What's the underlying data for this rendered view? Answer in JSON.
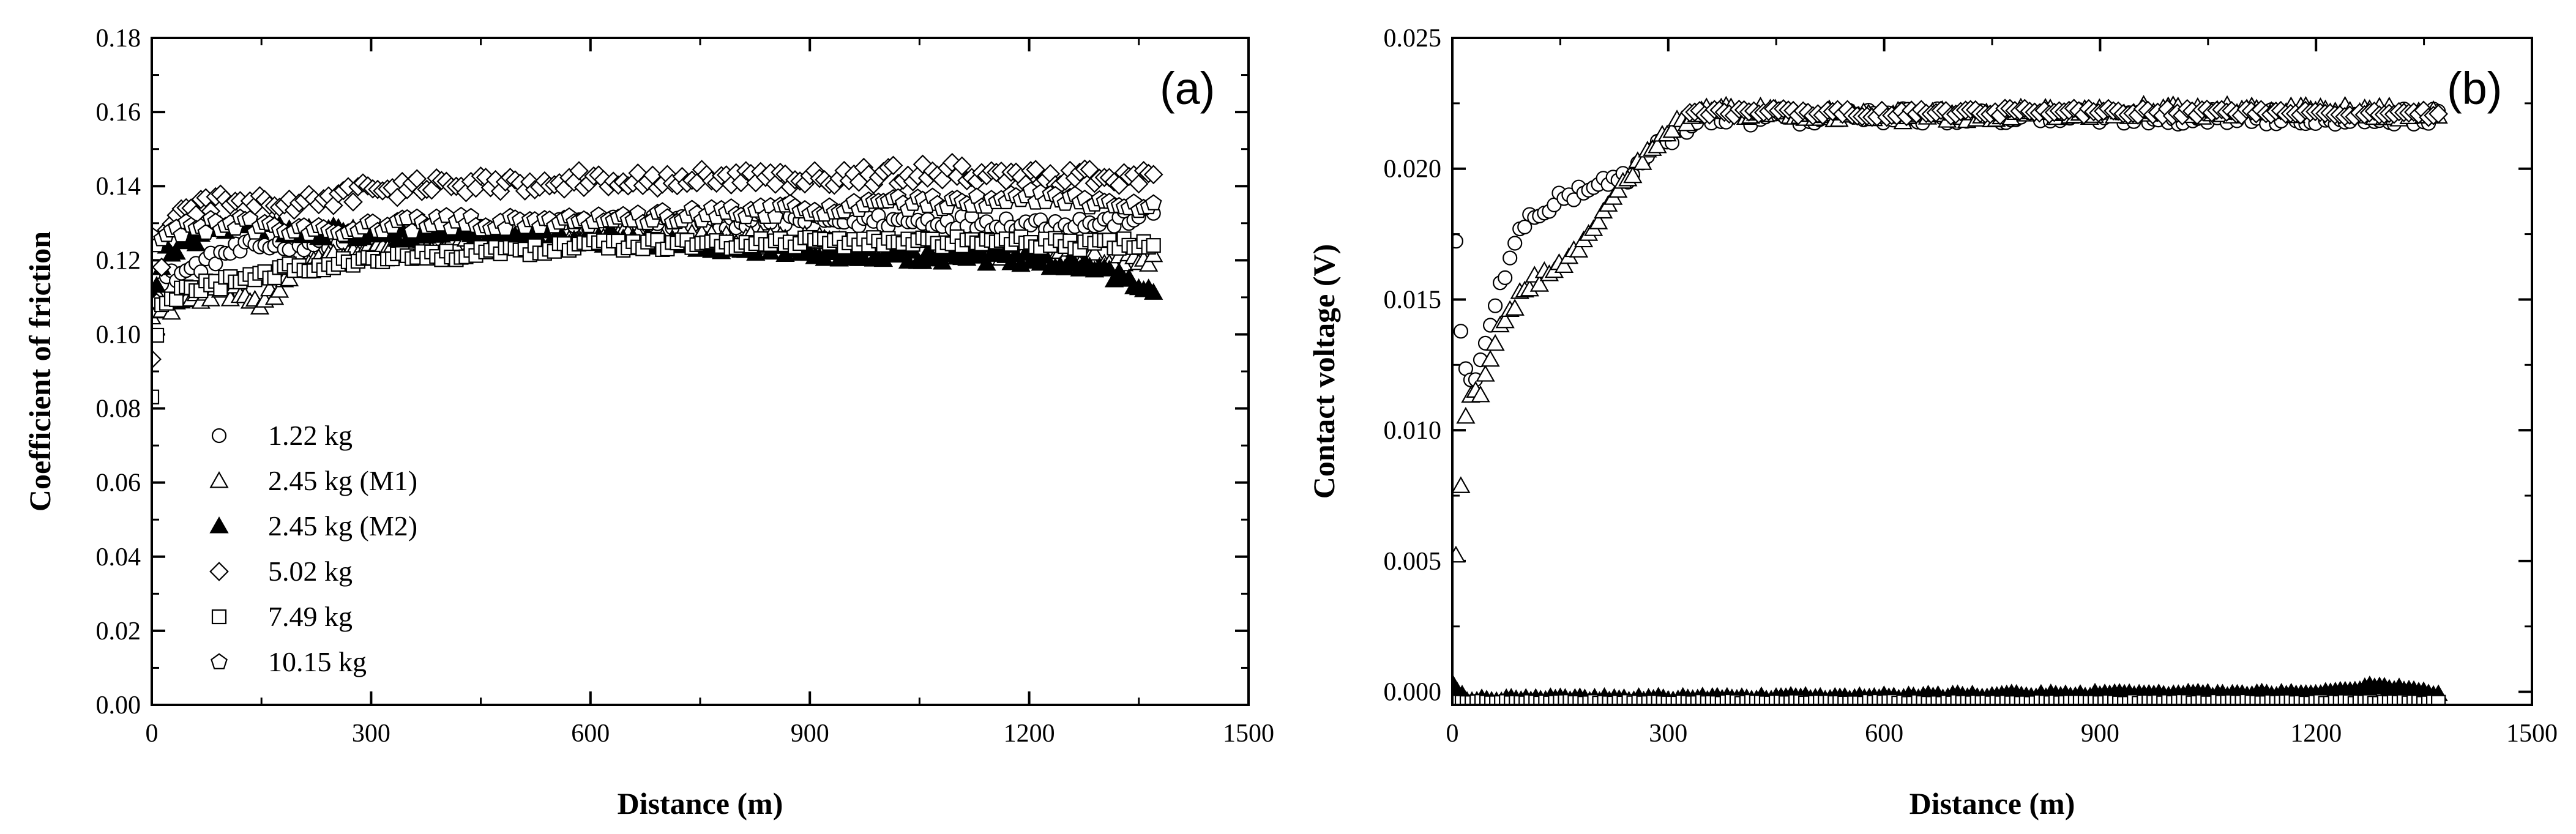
{
  "chart_data": [
    {
      "panel": "(a)",
      "type": "scatter",
      "xlabel": "Distance (m)",
      "ylabel": "Coefficient of friction",
      "xlim": [
        0,
        1500
      ],
      "ylim": [
        0,
        0.18
      ],
      "xticks": [
        "0",
        "300",
        "600",
        "900",
        "1200",
        "1500"
      ],
      "yticks": [
        "0.00",
        "0.02",
        "0.04",
        "0.06",
        "0.08",
        "0.10",
        "0.12",
        "0.14",
        "0.16",
        "0.18"
      ],
      "legend": {
        "placement": "lower-left",
        "entries": [
          {
            "label": "1.22 kg",
            "marker": "circle"
          },
          {
            "label": "2.45 kg (M1)",
            "marker": "triangle"
          },
          {
            "label": "2.45 kg (M2)",
            "marker": "triangle-filled"
          },
          {
            "label": "5.02 kg",
            "marker": "diamond"
          },
          {
            "label": "7.49 kg",
            "marker": "square"
          },
          {
            "label": "10.15 kg",
            "marker": "pentagon"
          }
        ]
      },
      "series": [
        {
          "name": "1.22 kg",
          "marker": "circle",
          "x_range": [
            0,
            1370
          ],
          "anchors_x": [
            0,
            20,
            60,
            100,
            150,
            300,
            600,
            900,
            1200,
            1300,
            1370
          ],
          "anchors_y": [
            0.11,
            0.115,
            0.118,
            0.122,
            0.124,
            0.126,
            0.13,
            0.131,
            0.13,
            0.13,
            0.133
          ],
          "noise": 0.002
        },
        {
          "name": "2.45 kg (M1)",
          "marker": "triangle",
          "x_range": [
            0,
            1370
          ],
          "anchors_x": [
            0,
            30,
            80,
            120,
            150,
            200,
            300,
            600,
            900,
            1200,
            1300,
            1370
          ],
          "anchors_y": [
            0.105,
            0.108,
            0.11,
            0.112,
            0.108,
            0.118,
            0.123,
            0.126,
            0.125,
            0.122,
            0.12,
            0.12
          ],
          "noise": 0.002
        },
        {
          "name": "2.45 kg (M2)",
          "marker": "triangle-filled",
          "x_range": [
            0,
            1370
          ],
          "anchors_x": [
            0,
            20,
            60,
            120,
            200,
            300,
            600,
            900,
            1200,
            1300,
            1370
          ],
          "anchors_y": [
            0.11,
            0.122,
            0.126,
            0.13,
            0.128,
            0.127,
            0.126,
            0.122,
            0.12,
            0.117,
            0.112
          ],
          "noise": 0.0018
        },
        {
          "name": "5.02 kg",
          "marker": "diamond",
          "x_range": [
            0,
            1370
          ],
          "anchors_x": [
            0,
            20,
            60,
            100,
            200,
            300,
            600,
            900,
            1100,
            1200,
            1300,
            1370
          ],
          "anchors_y": [
            0.095,
            0.13,
            0.134,
            0.136,
            0.135,
            0.139,
            0.142,
            0.142,
            0.144,
            0.142,
            0.143,
            0.142
          ],
          "noise": 0.0025
        },
        {
          "name": "7.49 kg",
          "marker": "square",
          "x_range": [
            0,
            1370
          ],
          "anchors_x": [
            0,
            10,
            50,
            100,
            200,
            300,
            600,
            900,
            1200,
            1300,
            1370
          ],
          "anchors_y": [
            0.083,
            0.108,
            0.112,
            0.114,
            0.118,
            0.12,
            0.124,
            0.125,
            0.125,
            0.124,
            0.125
          ],
          "noise": 0.0015
        },
        {
          "name": "10.15 kg",
          "marker": "pentagon",
          "x_range": [
            0,
            1370
          ],
          "anchors_x": [
            0,
            30,
            100,
            200,
            400,
            600,
            800,
            1000,
            1200,
            1300,
            1370
          ],
          "anchors_y": [
            0.125,
            0.128,
            0.13,
            0.128,
            0.13,
            0.131,
            0.133,
            0.135,
            0.137,
            0.136,
            0.135
          ],
          "noise": 0.002
        }
      ]
    },
    {
      "panel": "(b)",
      "type": "scatter",
      "xlabel": "Distance (m)",
      "ylabel": "Contact voltage (V)",
      "xlim": [
        0,
        1500
      ],
      "ylim": [
        -0.0005,
        0.025
      ],
      "xticks": [
        "0",
        "300",
        "600",
        "900",
        "1200",
        "1500"
      ],
      "yticks": [
        "0.000",
        "0.005",
        "0.010",
        "0.015",
        "0.020",
        "0.025"
      ],
      "series": [
        {
          "name": "1.22 kg",
          "marker": "circle",
          "x_range": [
            5,
            1370
          ],
          "anchors_x": [
            5,
            15,
            30,
            60,
            100,
            150,
            200,
            250,
            300,
            350,
            600,
            900,
            1200,
            1370
          ],
          "anchors_y": [
            0.0172,
            0.0125,
            0.0115,
            0.015,
            0.018,
            0.0188,
            0.0194,
            0.0198,
            0.0212,
            0.0219,
            0.022,
            0.022,
            0.022,
            0.022
          ],
          "noise": 0.0003
        },
        {
          "name": "2.45 kg (M1)",
          "marker": "triangle",
          "x_range": [
            5,
            1370
          ],
          "anchors_x": [
            5,
            20,
            40,
            60,
            100,
            140,
            180,
            250,
            300,
            350,
            600,
            900,
            1200,
            1370
          ],
          "anchors_y": [
            0.005,
            0.011,
            0.0115,
            0.0135,
            0.0155,
            0.016,
            0.017,
            0.0198,
            0.0216,
            0.0222,
            0.022,
            0.0222,
            0.0222,
            0.0221
          ],
          "noise": 0.00025
        },
        {
          "name": "5.02 kg",
          "marker": "diamond",
          "x_range": [
            330,
            1370
          ],
          "anchors_x": [
            330,
            600,
            900,
            1200,
            1370
          ],
          "anchors_y": [
            0.0222,
            0.0221,
            0.0222,
            0.0221,
            0.0221
          ],
          "noise": 0.00015
        },
        {
          "name": "2.45 kg (M2)",
          "marker": "triangle-filled",
          "x_range": [
            0,
            1370
          ],
          "anchors_x": [
            0,
            20,
            600,
            900,
            1200,
            1280,
            1320,
            1370
          ],
          "anchors_y": [
            0.0003,
            -0.0003,
            -0.0002,
            -0.0001,
            -0.0001,
            0.0002,
            0.0001,
            -0.0001
          ],
          "noise": 8e-05
        },
        {
          "name": "7.49 kg",
          "marker": "square",
          "x_range": [
            0,
            1370
          ],
          "anchors_x": [
            0,
            1370
          ],
          "anchors_y": [
            -0.0004,
            -0.0004
          ],
          "noise": 4e-05
        }
      ]
    }
  ],
  "colors": {
    "ink": "#000000",
    "background": "#ffffff"
  }
}
